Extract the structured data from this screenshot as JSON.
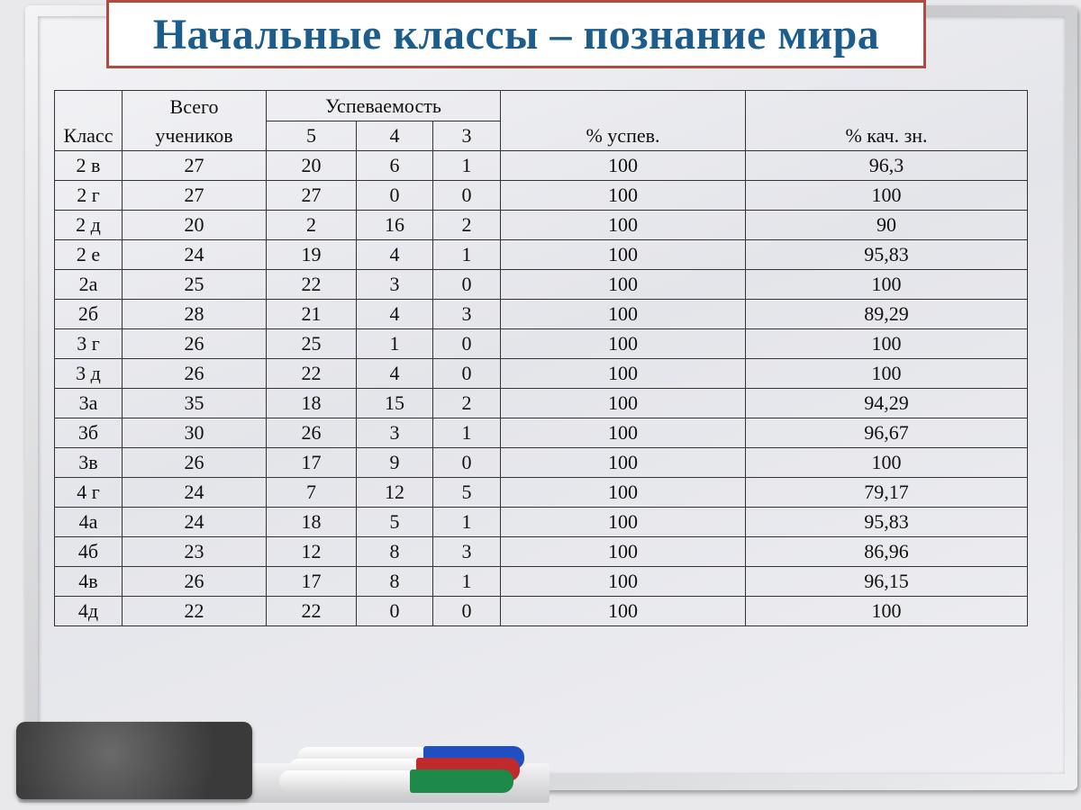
{
  "title": "Начальные классы – познание мира",
  "table": {
    "headers": {
      "class": "Класс",
      "total": "Всего учеников",
      "performance": "Успеваемость",
      "grade5": "5",
      "grade4": "4",
      "grade3": "3",
      "success_pct": "% успев.",
      "quality_pct": "% кач. зн."
    },
    "rows": [
      [
        "2 в",
        "27",
        "20",
        "6",
        "1",
        "100",
        "96,3"
      ],
      [
        "2 г",
        "27",
        "27",
        "0",
        "0",
        "100",
        "100"
      ],
      [
        "2 д",
        "20",
        "2",
        "16",
        "2",
        "100",
        "90"
      ],
      [
        "2 е",
        "24",
        "19",
        "4",
        "1",
        "100",
        "95,83"
      ],
      [
        "2а",
        "25",
        "22",
        "3",
        "0",
        "100",
        "100"
      ],
      [
        "2б",
        "28",
        "21",
        "4",
        "3",
        "100",
        "89,29"
      ],
      [
        "3 г",
        "26",
        "25",
        "1",
        "0",
        "100",
        "100"
      ],
      [
        "3 д",
        "26",
        "22",
        "4",
        "0",
        "100",
        "100"
      ],
      [
        "3а",
        "35",
        "18",
        "15",
        "2",
        "100",
        "94,29"
      ],
      [
        "3б",
        "30",
        "26",
        "3",
        "1",
        "100",
        "96,67"
      ],
      [
        "3в",
        "26",
        "17",
        "9",
        "0",
        "100",
        "100"
      ],
      [
        "4 г",
        "24",
        "7",
        "12",
        "5",
        "100",
        "79,17"
      ],
      [
        "4а",
        "24",
        "18",
        "5",
        "1",
        "100",
        "95,83"
      ],
      [
        "4б",
        "23",
        "12",
        "8",
        "3",
        "100",
        "86,96"
      ],
      [
        "4в",
        "26",
        "17",
        "8",
        "1",
        "100",
        "96,15"
      ],
      [
        "4д",
        "22",
        "22",
        "0",
        "0",
        "100",
        "100"
      ]
    ]
  },
  "colors": {
    "title": "#1d5d8c",
    "title_border": "#b24a44",
    "marker_caps": [
      "#1f4fc0",
      "#c02a2a",
      "#1d8a4a"
    ]
  }
}
